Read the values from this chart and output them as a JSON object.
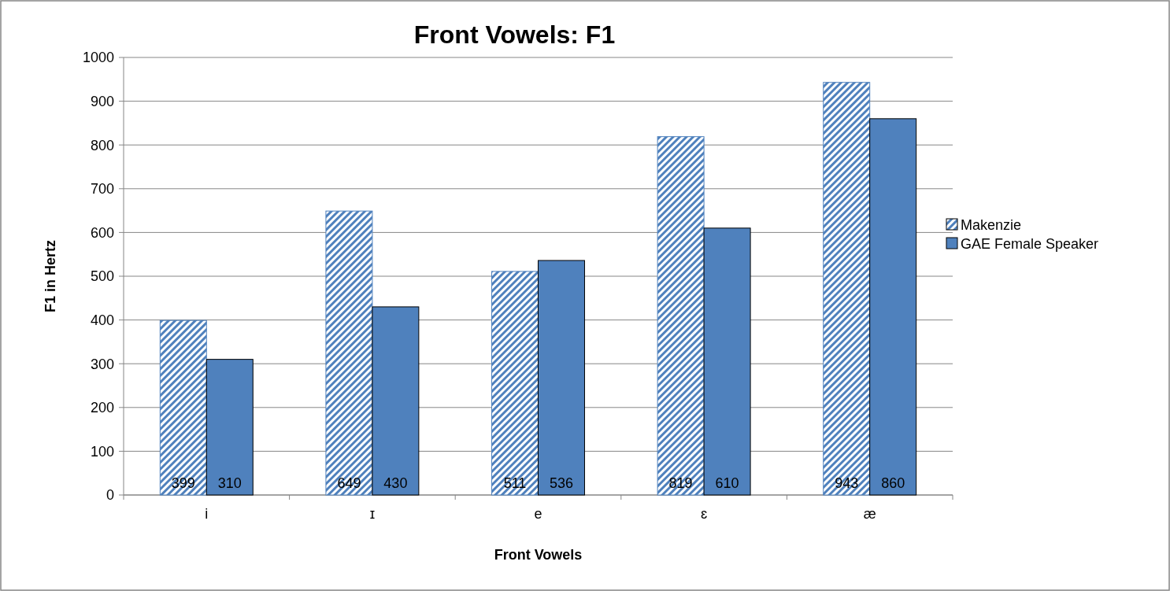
{
  "chart_data": {
    "type": "bar",
    "title": "Front Vowels: F1",
    "xlabel": "Front Vowels",
    "ylabel": "F1 in Hertz",
    "categories": [
      "i",
      "ɪ",
      "e",
      "ɛ",
      "æ"
    ],
    "series": [
      {
        "name": "Makenzie",
        "color": "#4f81bd",
        "values": [
          399,
          649,
          511,
          819,
          943
        ]
      },
      {
        "name": "GAE Female Speaker",
        "color": "#4f81bd",
        "values": [
          310,
          430,
          536,
          610,
          860
        ]
      }
    ],
    "ylim": [
      0,
      1000
    ],
    "yticks": [
      0,
      100,
      200,
      300,
      400,
      500,
      600,
      700,
      800,
      900,
      1000
    ],
    "grid": "y",
    "legend": "right",
    "data_labels": true
  }
}
